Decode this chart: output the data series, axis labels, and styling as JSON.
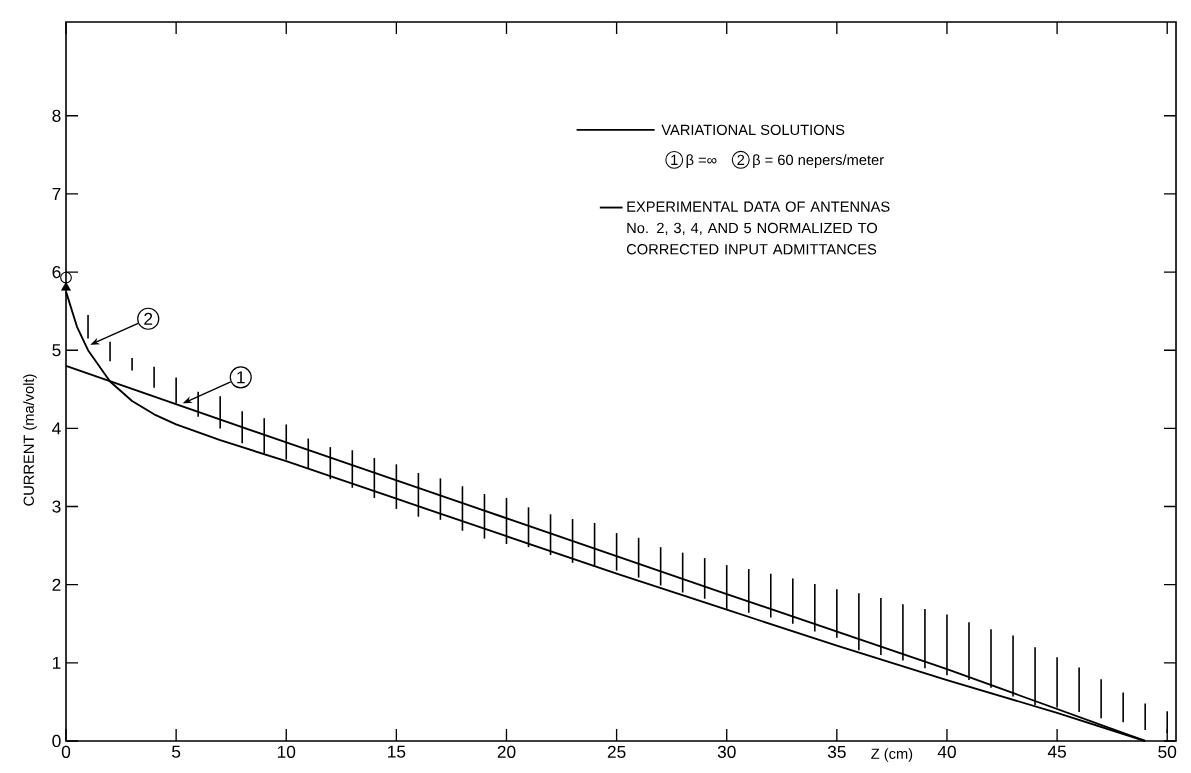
{
  "chart_data": {
    "type": "line",
    "xlabel": "Z (cm)",
    "ylabel": "CURRENT  (ma/volt)",
    "legend_title": "VARIATIONAL SOLUTIONS",
    "xlim": [
      0,
      50.4
    ],
    "ylim": [
      0,
      9.2
    ],
    "xticks": [
      0,
      5,
      10,
      15,
      20,
      25,
      30,
      35,
      40,
      45,
      50
    ],
    "yticks": [
      0,
      1,
      2,
      3,
      4,
      5,
      6,
      7,
      8
    ],
    "legend": "top right",
    "grid": false,
    "series": [
      {
        "name": "β =∞",
        "color": "#000000",
        "line_style": "solid",
        "x": [
          0,
          10,
          20,
          30,
          40,
          49
        ],
        "values": [
          4.8,
          3.82,
          2.85,
          1.88,
          0.92,
          0
        ]
      },
      {
        "name": "β = 60 nepers/meter",
        "color": "#000000",
        "line_style": "solid",
        "x": [
          0,
          0.5,
          1,
          2,
          3,
          4,
          5,
          7,
          10,
          15,
          20,
          25,
          30,
          35,
          40,
          45,
          49
        ],
        "values": [
          5.75,
          5.3,
          5.0,
          4.6,
          4.35,
          4.18,
          4.05,
          3.85,
          3.58,
          3.1,
          2.62,
          2.14,
          1.68,
          1.22,
          0.78,
          0.36,
          0
        ]
      },
      {
        "name": "EXPERIMENTAL DATA OF ANTENNAS No. 2, 3, 4, AND 5 NORMALIZED TO CORRECTED INPUT ADMITTANCES",
        "type": "bar",
        "color": "#000000",
        "x": [
          1,
          2,
          3,
          4,
          5,
          6,
          7,
          8,
          9,
          10,
          11,
          12,
          13,
          14,
          15,
          16,
          17,
          18,
          19,
          20,
          21,
          22,
          23,
          24,
          25,
          26,
          27,
          28,
          29,
          30,
          31,
          32,
          33,
          34,
          35,
          36,
          37,
          38,
          39,
          40,
          41,
          42,
          43,
          44,
          45,
          46,
          47,
          48,
          49,
          50
        ],
        "base": [
          5.15,
          4.86,
          4.74,
          4.52,
          4.32,
          4.15,
          4.0,
          3.81,
          3.68,
          3.6,
          3.49,
          3.35,
          3.24,
          3.11,
          2.97,
          2.87,
          2.83,
          2.69,
          2.59,
          2.52,
          2.48,
          2.38,
          2.28,
          2.23,
          2.18,
          2.09,
          1.99,
          1.9,
          1.82,
          1.69,
          1.64,
          1.58,
          1.5,
          1.4,
          1.32,
          1.16,
          1.1,
          1.03,
          0.93,
          0.84,
          0.78,
          0.68,
          0.57,
          0.46,
          0.43,
          0.37,
          0.29,
          0.24,
          0.14,
          0.1
        ],
        "values": [
          0.3,
          0.25,
          0.16,
          0.27,
          0.33,
          0.32,
          0.41,
          0.41,
          0.45,
          0.45,
          0.38,
          0.41,
          0.48,
          0.51,
          0.57,
          0.56,
          0.53,
          0.57,
          0.57,
          0.59,
          0.51,
          0.52,
          0.56,
          0.56,
          0.48,
          0.51,
          0.49,
          0.51,
          0.52,
          0.56,
          0.56,
          0.56,
          0.58,
          0.61,
          0.62,
          0.73,
          0.73,
          0.72,
          0.76,
          0.78,
          0.74,
          0.75,
          0.78,
          0.74,
          0.64,
          0.57,
          0.5,
          0.38,
          0.34,
          0.28
        ]
      },
      {
        "type": "scatter",
        "color": "#000000",
        "marker": "circle",
        "x": [
          0
        ],
        "values": [
          5.93
        ]
      },
      {
        "type": "scatter",
        "color": "#000000",
        "marker": "triangle",
        "x": [
          0
        ],
        "values": [
          5.8
        ]
      }
    ],
    "annotations": [
      {
        "text": "1",
        "x": 5.3,
        "y": 4.32
      },
      {
        "text": "2",
        "x": 1.1,
        "y": 5.07
      }
    ]
  }
}
